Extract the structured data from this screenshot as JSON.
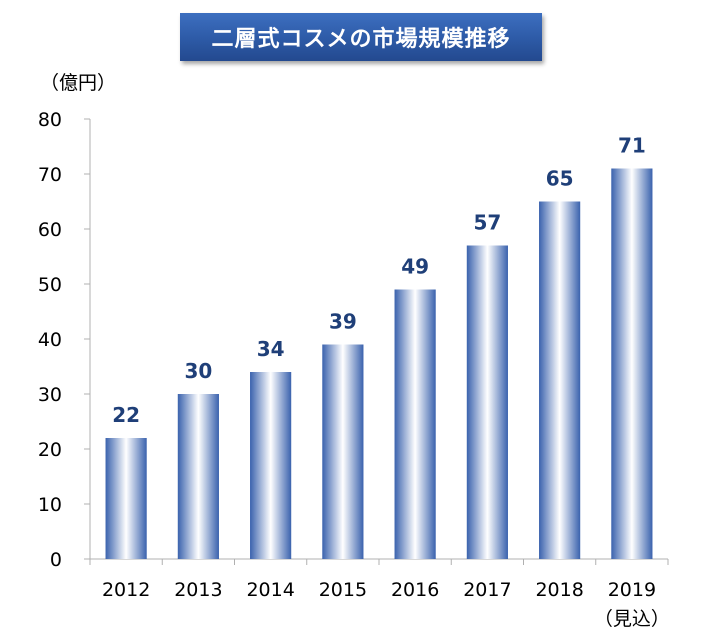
{
  "chart_data": {
    "type": "bar",
    "title": "二層式コスメの市場規模推移",
    "unit_label": "（億円）",
    "categories": [
      "2012",
      "2013",
      "2014",
      "2015",
      "2016",
      "2017",
      "2018",
      "2019"
    ],
    "category_notes": [
      "",
      "",
      "",
      "",
      "",
      "",
      "",
      "（見込）"
    ],
    "values": [
      22,
      30,
      34,
      39,
      49,
      57,
      65,
      71
    ],
    "data_labels": [
      "22",
      "30",
      "34",
      "39",
      "49",
      "57",
      "65",
      "71"
    ],
    "ylim": [
      0,
      80
    ],
    "yticks": [
      0,
      10,
      20,
      30,
      40,
      50,
      60,
      70,
      80
    ],
    "grid": false,
    "colors": {
      "bar_edge": "#3a62ad",
      "bar_center": "#ffffff",
      "label": "#1f3f78",
      "banner": "#2d5aa6"
    }
  }
}
